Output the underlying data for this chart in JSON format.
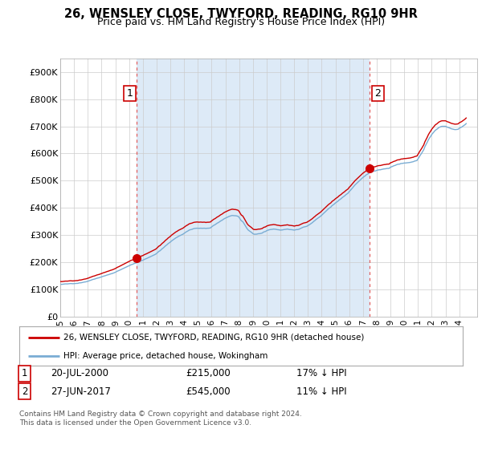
{
  "title": "26, WENSLEY CLOSE, TWYFORD, READING, RG10 9HR",
  "subtitle": "Price paid vs. HM Land Registry's House Price Index (HPI)",
  "xlim_start": 1995.0,
  "xlim_end": 2025.3,
  "ylim": [
    0,
    950000
  ],
  "yticks": [
    0,
    100000,
    200000,
    300000,
    400000,
    500000,
    600000,
    700000,
    800000,
    900000
  ],
  "ytick_labels": [
    "£0",
    "£100K",
    "£200K",
    "£300K",
    "£400K",
    "£500K",
    "£600K",
    "£700K",
    "£800K",
    "£900K"
  ],
  "xtick_years": [
    1995,
    1996,
    1997,
    1998,
    1999,
    2000,
    2001,
    2002,
    2003,
    2004,
    2005,
    2006,
    2007,
    2008,
    2009,
    2010,
    2011,
    2012,
    2013,
    2014,
    2015,
    2016,
    2017,
    2018,
    2019,
    2020,
    2021,
    2022,
    2023,
    2024
  ],
  "sale1_x": 2000.55,
  "sale1_y": 215000,
  "sale1_label": "1",
  "sale2_x": 2017.49,
  "sale2_y": 545000,
  "sale2_label": "2",
  "legend_line1": "26, WENSLEY CLOSE, TWYFORD, READING, RG10 9HR (detached house)",
  "legend_line2": "HPI: Average price, detached house, Wokingham",
  "table_row1": [
    "1",
    "20-JUL-2000",
    "£215,000",
    "17% ↓ HPI"
  ],
  "table_row2": [
    "2",
    "27-JUN-2017",
    "£545,000",
    "11% ↓ HPI"
  ],
  "footnote": "Contains HM Land Registry data © Crown copyright and database right 2024.\nThis data is licensed under the Open Government Licence v3.0.",
  "hpi_color": "#7aadd4",
  "sale_color": "#cc0000",
  "vline_color": "#e06060",
  "shade_color": "#ddeaf7",
  "background_color": "#ffffff",
  "hpi_data_x": [
    1995.0,
    1995.083,
    1995.167,
    1995.25,
    1995.333,
    1995.417,
    1995.5,
    1995.583,
    1995.667,
    1995.75,
    1995.833,
    1995.917,
    1996.0,
    1996.083,
    1996.167,
    1996.25,
    1996.333,
    1996.417,
    1996.5,
    1996.583,
    1996.667,
    1996.75,
    1996.833,
    1996.917,
    1997.0,
    1997.083,
    1997.167,
    1997.25,
    1997.333,
    1997.417,
    1997.5,
    1997.583,
    1997.667,
    1997.75,
    1997.833,
    1997.917,
    1998.0,
    1998.083,
    1998.167,
    1998.25,
    1998.333,
    1998.417,
    1998.5,
    1998.583,
    1998.667,
    1998.75,
    1998.833,
    1998.917,
    1999.0,
    1999.083,
    1999.167,
    1999.25,
    1999.333,
    1999.417,
    1999.5,
    1999.583,
    1999.667,
    1999.75,
    1999.833,
    1999.917,
    2000.0,
    2000.083,
    2000.167,
    2000.25,
    2000.333,
    2000.417,
    2000.5,
    2000.583,
    2000.667,
    2000.75,
    2000.833,
    2000.917,
    2001.0,
    2001.083,
    2001.167,
    2001.25,
    2001.333,
    2001.417,
    2001.5,
    2001.583,
    2001.667,
    2001.75,
    2001.833,
    2001.917,
    2002.0,
    2002.083,
    2002.167,
    2002.25,
    2002.333,
    2002.417,
    2002.5,
    2002.583,
    2002.667,
    2002.75,
    2002.833,
    2002.917,
    2003.0,
    2003.083,
    2003.167,
    2003.25,
    2003.333,
    2003.417,
    2003.5,
    2003.583,
    2003.667,
    2003.75,
    2003.833,
    2003.917,
    2004.0,
    2004.083,
    2004.167,
    2004.25,
    2004.333,
    2004.417,
    2004.5,
    2004.583,
    2004.667,
    2004.75,
    2004.833,
    2004.917,
    2005.0,
    2005.083,
    2005.167,
    2005.25,
    2005.333,
    2005.417,
    2005.5,
    2005.583,
    2005.667,
    2005.75,
    2005.833,
    2005.917,
    2006.0,
    2006.083,
    2006.167,
    2006.25,
    2006.333,
    2006.417,
    2006.5,
    2006.583,
    2006.667,
    2006.75,
    2006.833,
    2006.917,
    2007.0,
    2007.083,
    2007.167,
    2007.25,
    2007.333,
    2007.417,
    2007.5,
    2007.583,
    2007.667,
    2007.75,
    2007.833,
    2007.917,
    2008.0,
    2008.083,
    2008.167,
    2008.25,
    2008.333,
    2008.417,
    2008.5,
    2008.583,
    2008.667,
    2008.75,
    2008.833,
    2008.917,
    2009.0,
    2009.083,
    2009.167,
    2009.25,
    2009.333,
    2009.417,
    2009.5,
    2009.583,
    2009.667,
    2009.75,
    2009.833,
    2009.917,
    2010.0,
    2010.083,
    2010.167,
    2010.25,
    2010.333,
    2010.417,
    2010.5,
    2010.583,
    2010.667,
    2010.75,
    2010.833,
    2010.917,
    2011.0,
    2011.083,
    2011.167,
    2011.25,
    2011.333,
    2011.417,
    2011.5,
    2011.583,
    2011.667,
    2011.75,
    2011.833,
    2011.917,
    2012.0,
    2012.083,
    2012.167,
    2012.25,
    2012.333,
    2012.417,
    2012.5,
    2012.583,
    2012.667,
    2012.75,
    2012.833,
    2012.917,
    2013.0,
    2013.083,
    2013.167,
    2013.25,
    2013.333,
    2013.417,
    2013.5,
    2013.583,
    2013.667,
    2013.75,
    2013.833,
    2013.917,
    2014.0,
    2014.083,
    2014.167,
    2014.25,
    2014.333,
    2014.417,
    2014.5,
    2014.583,
    2014.667,
    2014.75,
    2014.833,
    2014.917,
    2015.0,
    2015.083,
    2015.167,
    2015.25,
    2015.333,
    2015.417,
    2015.5,
    2015.583,
    2015.667,
    2015.75,
    2015.833,
    2015.917,
    2016.0,
    2016.083,
    2016.167,
    2016.25,
    2016.333,
    2016.417,
    2016.5,
    2016.583,
    2016.667,
    2016.75,
    2016.833,
    2016.917,
    2017.0,
    2017.083,
    2017.167,
    2017.25,
    2017.333,
    2017.417,
    2017.5,
    2017.583,
    2017.667,
    2017.75,
    2017.833,
    2017.917,
    2018.0,
    2018.083,
    2018.167,
    2018.25,
    2018.333,
    2018.417,
    2018.5,
    2018.583,
    2018.667,
    2018.75,
    2018.833,
    2018.917,
    2019.0,
    2019.083,
    2019.167,
    2019.25,
    2019.333,
    2019.417,
    2019.5,
    2019.583,
    2019.667,
    2019.75,
    2019.833,
    2019.917,
    2020.0,
    2020.083,
    2020.167,
    2020.25,
    2020.333,
    2020.417,
    2020.5,
    2020.583,
    2020.667,
    2020.75,
    2020.833,
    2020.917,
    2021.0,
    2021.083,
    2021.167,
    2021.25,
    2021.333,
    2021.417,
    2021.5,
    2021.583,
    2021.667,
    2021.75,
    2021.833,
    2021.917,
    2022.0,
    2022.083,
    2022.167,
    2022.25,
    2022.333,
    2022.417,
    2022.5,
    2022.583,
    2022.667,
    2022.75,
    2022.833,
    2022.917,
    2023.0,
    2023.083,
    2023.167,
    2023.25,
    2023.333,
    2023.417,
    2023.5,
    2023.583,
    2023.667,
    2023.75,
    2023.833,
    2023.917,
    2024.0,
    2024.083,
    2024.167,
    2024.25,
    2024.333,
    2024.417,
    2024.5
  ],
  "hpi_data_y": [
    119000,
    118500,
    118800,
    119500,
    120000,
    120300,
    120000,
    120500,
    121000,
    121500,
    121000,
    120800,
    121000,
    121500,
    122000,
    122000,
    123000,
    124000,
    124000,
    125000,
    126000,
    127000,
    127500,
    128500,
    130000,
    131000,
    133000,
    134000,
    136000,
    137000,
    138000,
    139500,
    141000,
    142000,
    143000,
    144500,
    146000,
    147500,
    149000,
    150000,
    151500,
    153000,
    154000,
    155500,
    157000,
    158000,
    159500,
    161000,
    163000,
    165000,
    167500,
    169000,
    171000,
    173000,
    175000,
    177000,
    179000,
    181000,
    183000,
    185000,
    187000,
    189000,
    191000,
    192000,
    194000,
    196000,
    197000,
    199000,
    201000,
    202000,
    204000,
    206000,
    207000,
    209500,
    211500,
    213000,
    215000,
    217000,
    219000,
    221000,
    223000,
    225000,
    227000,
    229000,
    232000,
    236000,
    240000,
    242000,
    246000,
    250000,
    253000,
    257000,
    261000,
    264000,
    268000,
    271000,
    274000,
    278000,
    281000,
    284000,
    287000,
    290000,
    292000,
    295000,
    297000,
    299000,
    301000,
    303000,
    306000,
    309000,
    312000,
    314000,
    317000,
    319000,
    320000,
    321000,
    323000,
    324000,
    324500,
    325000,
    325000,
    324500,
    325000,
    325000,
    324500,
    325000,
    325000,
    324000,
    325000,
    325000,
    325500,
    326000,
    330000,
    333000,
    336000,
    338000,
    341000,
    344000,
    346000,
    349000,
    352000,
    354000,
    357000,
    360000,
    362000,
    364000,
    366000,
    368000,
    369500,
    371000,
    372000,
    371500,
    371000,
    371000,
    370000,
    369000,
    365000,
    358000,
    352000,
    350000,
    344000,
    337000,
    330000,
    323000,
    318000,
    315000,
    312000,
    309000,
    305000,
    303000,
    303000,
    303000,
    304000,
    305000,
    305000,
    306000,
    307000,
    310000,
    312000,
    313000,
    316000,
    317500,
    319000,
    320000,
    320500,
    321000,
    322000,
    321500,
    321000,
    320000,
    319500,
    319000,
    318000,
    318500,
    319000,
    320000,
    320500,
    321000,
    322000,
    321000,
    320000,
    320000,
    319500,
    319000,
    318000,
    319000,
    320000,
    320000,
    321000,
    323000,
    325000,
    327000,
    329000,
    330000,
    331000,
    332000,
    335000,
    337000,
    340000,
    343000,
    346000,
    350000,
    353000,
    357000,
    360000,
    363000,
    366000,
    369000,
    373000,
    377000,
    381000,
    385000,
    389000,
    393000,
    397000,
    400000,
    403000,
    408000,
    411000,
    414000,
    418000,
    421000,
    424000,
    428000,
    431000,
    434000,
    438000,
    441000,
    444000,
    448000,
    451000,
    454000,
    460000,
    464000,
    469000,
    474000,
    479000,
    484000,
    488000,
    492000,
    496000,
    500000,
    504000,
    508000,
    512000,
    515000,
    518000,
    522000,
    524000,
    527000,
    530000,
    531000,
    533000,
    535000,
    535500,
    536000,
    538000,
    539000,
    540000,
    540000,
    541000,
    542000,
    543000,
    543500,
    544000,
    545000,
    545000,
    545500,
    550000,
    551000,
    553000,
    555000,
    556000,
    558000,
    560000,
    560500,
    561000,
    563000,
    563500,
    564000,
    565000,
    565000,
    565500,
    566000,
    566500,
    567000,
    568000,
    569000,
    570000,
    572000,
    573000,
    574000,
    580000,
    587000,
    594000,
    600000,
    607000,
    614000,
    625000,
    633000,
    641000,
    650000,
    657000,
    663000,
    670000,
    675000,
    680000,
    685000,
    688000,
    691000,
    695000,
    697000,
    699000,
    700000,
    700000,
    700000,
    700000,
    698000,
    696000,
    695000,
    693000,
    691000,
    690000,
    689000,
    688000,
    688000,
    688500,
    689000,
    693000,
    695000,
    697000,
    700000,
    703000,
    706000,
    710000
  ]
}
